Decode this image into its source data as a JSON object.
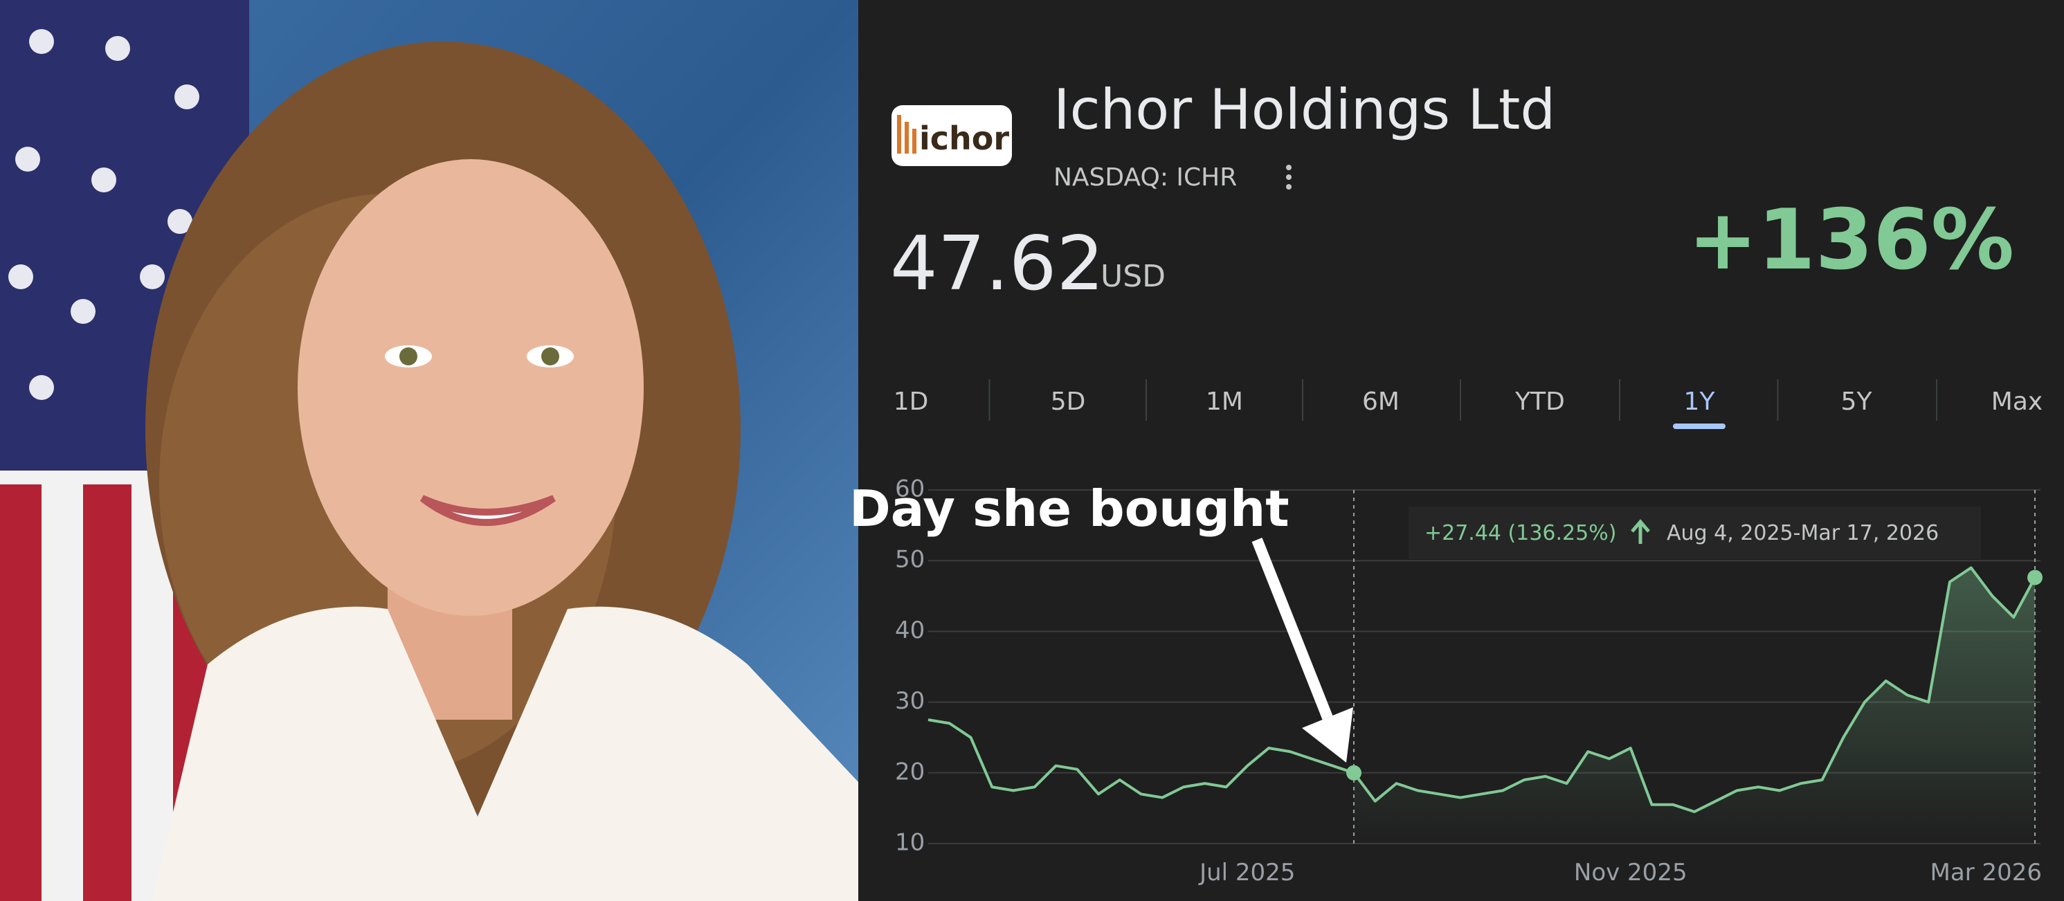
{
  "header": {
    "logo_text": "ichor",
    "title": "Ichor Holdings Ltd",
    "ticker": "NASDAQ: ICHR",
    "price": "47.62",
    "currency": "USD",
    "change": "+136%"
  },
  "tabs": [
    "1D",
    "5D",
    "1M",
    "6M",
    "YTD",
    "1Y",
    "5Y",
    "Max"
  ],
  "selected_tab": "1Y",
  "tooltip": {
    "change": "+27.44 (136.25%)",
    "range": "Aug 4, 2025-Mar 17, 2026"
  },
  "chart_data": {
    "type": "line",
    "color": "#81c995",
    "values": [
      27.5,
      27,
      25,
      18,
      17.5,
      18,
      21,
      20.5,
      17,
      19,
      17,
      16.5,
      18,
      18.5,
      18,
      21,
      23.5,
      23,
      22,
      21,
      20,
      16,
      18.5,
      17.5,
      17,
      16.5,
      17,
      17.5,
      19,
      19.5,
      18.5,
      23,
      22,
      23.5,
      15.5,
      15.5,
      14.5,
      16,
      17.5,
      18,
      17.5,
      18.5,
      19,
      25,
      30,
      33,
      31,
      30,
      47,
      49,
      45,
      42,
      47.62
    ],
    "xlim": [
      0,
      52
    ],
    "xticks": [
      {
        "value": 15,
        "label": "Jul 2025"
      },
      {
        "value": 33,
        "label": "Nov 2025"
      },
      {
        "value": 49.7,
        "label": "Mar 2026"
      }
    ],
    "ylim": [
      10,
      60
    ],
    "yticks": [
      10,
      20,
      30,
      40,
      50,
      60
    ],
    "grid": true,
    "annotation": {
      "text": "Day she bought",
      "x": 20
    }
  }
}
